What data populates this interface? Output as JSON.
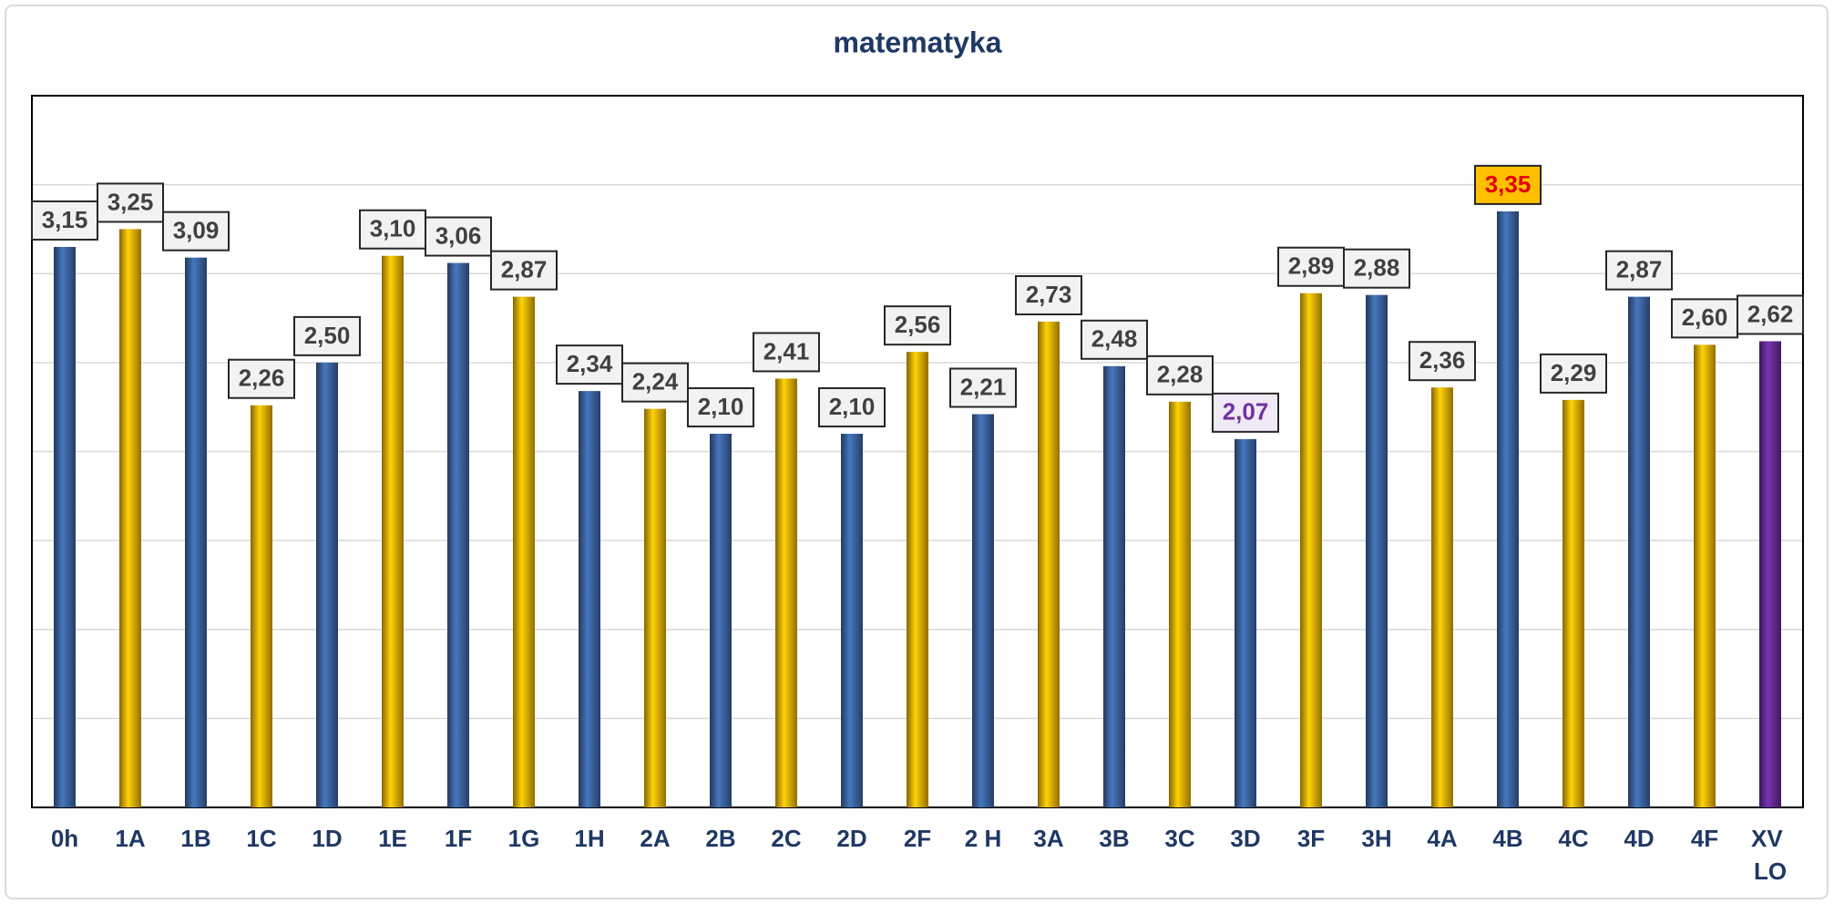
{
  "chart_data": {
    "type": "bar",
    "title": "matematyka",
    "categories": [
      "0h",
      "1A",
      "1B",
      "1C",
      "1D",
      "1E",
      "1F",
      "1G",
      "1H",
      "2A",
      "2B",
      "2C",
      "2D",
      "2F",
      "2 H",
      "3A",
      "3B",
      "3C",
      "3D",
      "3F",
      "3H",
      "4A",
      "4B",
      "4C",
      "4D",
      "4F",
      "XV LO"
    ],
    "values": [
      3.15,
      3.25,
      3.09,
      2.26,
      2.5,
      3.1,
      3.06,
      2.87,
      2.34,
      2.24,
      2.1,
      2.41,
      2.1,
      2.56,
      2.21,
      2.73,
      2.48,
      2.28,
      2.07,
      2.89,
      2.88,
      2.36,
      3.35,
      2.29,
      2.87,
      2.6,
      2.62
    ],
    "value_labels": [
      "3,15",
      "3,25",
      "3,09",
      "2,26",
      "2,50",
      "3,10",
      "3,06",
      "2,87",
      "2,34",
      "2,24",
      "2,10",
      "2,41",
      "2,10",
      "2,56",
      "2,21",
      "2,73",
      "2,48",
      "2,28",
      "2,07",
      "2,89",
      "2,88",
      "2,36",
      "3,35",
      "2,29",
      "2,87",
      "2,60",
      "2,62"
    ],
    "colors": [
      "#3d68a6",
      "#f2b705",
      "#3d68a6",
      "#f2b705",
      "#3d68a6",
      "#f2b705",
      "#3d68a6",
      "#f2b705",
      "#3d68a6",
      "#f2b705",
      "#3d68a6",
      "#f2b705",
      "#3d68a6",
      "#f2b705",
      "#3d68a6",
      "#f2b705",
      "#3d68a6",
      "#f2b705",
      "#3d68a6",
      "#f2b705",
      "#3d68a6",
      "#f2b705",
      "#3d68a6",
      "#f2b705",
      "#3d68a6",
      "#f2b705",
      "#6a2c9c"
    ],
    "value_label_colors": [
      "#404040",
      "#404040",
      "#404040",
      "#404040",
      "#404040",
      "#404040",
      "#404040",
      "#404040",
      "#404040",
      "#404040",
      "#404040",
      "#404040",
      "#404040",
      "#404040",
      "#404040",
      "#404040",
      "#404040",
      "#404040",
      "#7030a0",
      "#404040",
      "#404040",
      "#404040",
      "#e00000",
      "#404040",
      "#404040",
      "#404040",
      "#404040"
    ],
    "value_label_fills": [
      "#f2f2f2",
      "#f2f2f2",
      "#f2f2f2",
      "#f2f2f2",
      "#f2f2f2",
      "#f2f2f2",
      "#f2f2f2",
      "#f2f2f2",
      "#f2f2f2",
      "#f2f2f2",
      "#f2f2f2",
      "#f2f2f2",
      "#f2f2f2",
      "#f2f2f2",
      "#f2f2f2",
      "#f2f2f2",
      "#f2f2f2",
      "#f2f2f2",
      "#efeaf5",
      "#f2f2f2",
      "#f2f2f2",
      "#f2f2f2",
      "#ffc000",
      "#f2f2f2",
      "#f2f2f2",
      "#f2f2f2",
      "#f2f2f2"
    ],
    "ylim": [
      0,
      4
    ],
    "yticks": [
      0,
      0.5,
      1,
      1.5,
      2,
      2.5,
      3,
      3.5,
      4
    ],
    "grid": true
  }
}
